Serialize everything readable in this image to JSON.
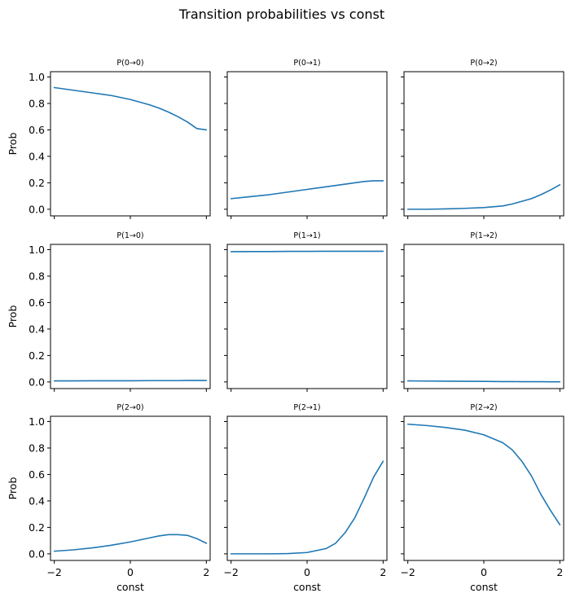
{
  "figure": {
    "title": "Transition probabilities vs const",
    "series_color": "#1f77b4"
  },
  "chart_data": {
    "type": "line",
    "grid": false,
    "shared_x": {
      "label": "const",
      "range": [
        -2.1,
        2.1
      ],
      "ticks": [
        -2,
        0,
        2
      ],
      "tick_labels": [
        "−2",
        "0",
        "2"
      ]
    },
    "shared_y": {
      "label": "Prob",
      "range": [
        -0.05,
        1.04
      ],
      "ticks": [
        0,
        0.2,
        0.4,
        0.6,
        0.8,
        1.0
      ],
      "tick_labels": [
        "0.0",
        "0.2",
        "0.4",
        "0.6",
        "0.8",
        "1.0"
      ]
    },
    "x": [
      -2.0,
      -1.5,
      -1.0,
      -0.5,
      0.0,
      0.5,
      0.75,
      1.0,
      1.25,
      1.5,
      1.75,
      2.0
    ],
    "panels": [
      {
        "title": "P(0→0)",
        "values": [
          0.92,
          0.9,
          0.88,
          0.86,
          0.83,
          0.79,
          0.765,
          0.735,
          0.7,
          0.66,
          0.61,
          0.6
        ]
      },
      {
        "title": "P(0→1)",
        "values": [
          0.08,
          0.095,
          0.11,
          0.13,
          0.15,
          0.17,
          0.18,
          0.19,
          0.2,
          0.21,
          0.215,
          0.215
        ]
      },
      {
        "title": "P(0→2)",
        "values": [
          0.0,
          0.0,
          0.003,
          0.007,
          0.013,
          0.025,
          0.04,
          0.06,
          0.08,
          0.11,
          0.145,
          0.185
        ]
      },
      {
        "title": "P(1→0)",
        "values": [
          0.008,
          0.008,
          0.009,
          0.009,
          0.009,
          0.01,
          0.01,
          0.01,
          0.01,
          0.011,
          0.011,
          0.011
        ]
      },
      {
        "title": "P(1→1)",
        "values": [
          0.985,
          0.986,
          0.986,
          0.987,
          0.987,
          0.988,
          0.988,
          0.988,
          0.988,
          0.988,
          0.988,
          0.988
        ]
      },
      {
        "title": "P(1→2)",
        "values": [
          0.008,
          0.007,
          0.006,
          0.005,
          0.004,
          0.003,
          0.003,
          0.002,
          0.002,
          0.002,
          0.001,
          0.001
        ]
      },
      {
        "title": "P(2→0)",
        "values": [
          0.02,
          0.03,
          0.045,
          0.065,
          0.09,
          0.12,
          0.135,
          0.145,
          0.145,
          0.14,
          0.115,
          0.08
        ]
      },
      {
        "title": "P(2→1)",
        "values": [
          0.0,
          0.0,
          0.0,
          0.002,
          0.01,
          0.04,
          0.08,
          0.16,
          0.27,
          0.42,
          0.58,
          0.7
        ]
      },
      {
        "title": "P(2→2)",
        "values": [
          0.98,
          0.97,
          0.955,
          0.935,
          0.9,
          0.84,
          0.785,
          0.7,
          0.59,
          0.45,
          0.33,
          0.22
        ]
      }
    ]
  }
}
